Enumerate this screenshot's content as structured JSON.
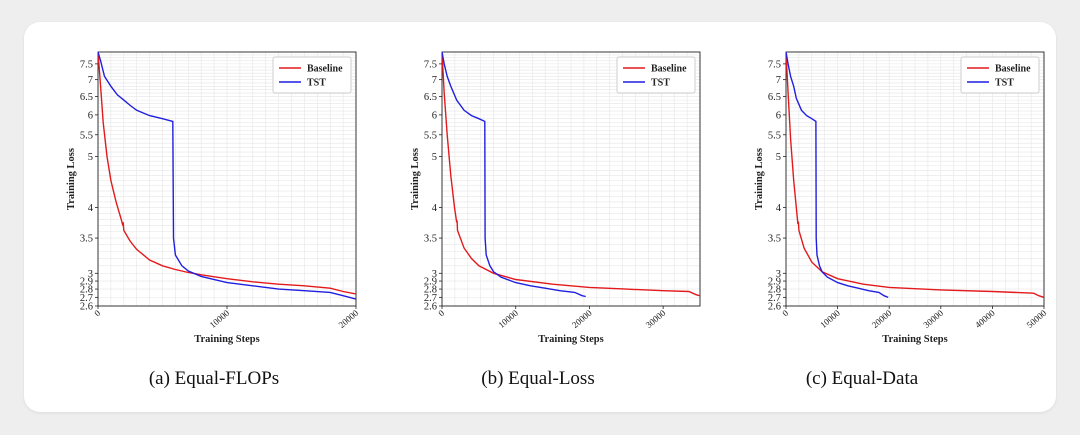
{
  "chart_data": [
    {
      "type": "line",
      "caption": "(a) Equal-FLOPs",
      "xlabel": "Training Steps",
      "ylabel": "Training Loss",
      "xlim": [
        0,
        20000
      ],
      "ylim": [
        2.6,
        7.9
      ],
      "yscale": "log",
      "xticks": [
        0,
        10000,
        20000
      ],
      "yticks": [
        2.6,
        2.7,
        2.8,
        2.9,
        3.0,
        3.5,
        4.0,
        5.0,
        5.5,
        6.0,
        6.5,
        7.0,
        7.5
      ],
      "grid": true,
      "legend": "top-right",
      "series": [
        {
          "name": "Baseline",
          "color": "#e31a1c",
          "points": [
            [
              0,
              7.9
            ],
            [
              200,
              6.8
            ],
            [
              400,
              5.8
            ],
            [
              700,
              5.0
            ],
            [
              1000,
              4.5
            ],
            [
              1400,
              4.1
            ],
            [
              1800,
              3.8
            ],
            [
              1900,
              3.72
            ],
            [
              1950,
              3.75
            ],
            [
              2000,
              3.62
            ],
            [
              2500,
              3.45
            ],
            [
              3000,
              3.33
            ],
            [
              4000,
              3.18
            ],
            [
              5000,
              3.1
            ],
            [
              6000,
              3.05
            ],
            [
              7000,
              3.01
            ],
            [
              8000,
              2.98
            ],
            [
              10000,
              2.93
            ],
            [
              12000,
              2.89
            ],
            [
              14000,
              2.86
            ],
            [
              16000,
              2.84
            ],
            [
              18000,
              2.81
            ],
            [
              19000,
              2.77
            ],
            [
              20000,
              2.74
            ]
          ]
        },
        {
          "name": "TST",
          "color": "#1f1fe0",
          "points": [
            [
              0,
              7.9
            ],
            [
              200,
              7.6
            ],
            [
              500,
              7.1
            ],
            [
              1000,
              6.8
            ],
            [
              1500,
              6.55
            ],
            [
              2000,
              6.4
            ],
            [
              2500,
              6.25
            ],
            [
              3000,
              6.12
            ],
            [
              4000,
              5.98
            ],
            [
              5000,
              5.9
            ],
            [
              5800,
              5.83
            ],
            [
              5850,
              3.5
            ],
            [
              6000,
              3.25
            ],
            [
              6500,
              3.1
            ],
            [
              7000,
              3.03
            ],
            [
              8000,
              2.96
            ],
            [
              10000,
              2.88
            ],
            [
              12000,
              2.84
            ],
            [
              14000,
              2.8
            ],
            [
              16000,
              2.78
            ],
            [
              18000,
              2.76
            ],
            [
              19000,
              2.72
            ],
            [
              20000,
              2.68
            ]
          ]
        }
      ]
    },
    {
      "type": "line",
      "caption": "(b) Equal-Loss",
      "xlabel": "Training Steps",
      "ylabel": "Training Loss",
      "xlim": [
        0,
        35000
      ],
      "ylim": [
        2.6,
        7.9
      ],
      "yscale": "log",
      "xticks": [
        0,
        10000,
        20000,
        30000
      ],
      "yticks": [
        2.6,
        2.7,
        2.8,
        2.9,
        3.0,
        3.5,
        4.0,
        5.0,
        5.5,
        6.0,
        6.5,
        7.0,
        7.5
      ],
      "grid": true,
      "legend": "top-right",
      "series": [
        {
          "name": "Baseline",
          "color": "#e31a1c",
          "points": [
            [
              0,
              7.9
            ],
            [
              300,
              6.6
            ],
            [
              700,
              5.5
            ],
            [
              1200,
              4.6
            ],
            [
              1700,
              4.0
            ],
            [
              2000,
              3.75
            ],
            [
              2050,
              3.78
            ],
            [
              2100,
              3.62
            ],
            [
              3000,
              3.35
            ],
            [
              4000,
              3.2
            ],
            [
              5000,
              3.1
            ],
            [
              7000,
              3.0
            ],
            [
              10000,
              2.92
            ],
            [
              15000,
              2.86
            ],
            [
              20000,
              2.82
            ],
            [
              25000,
              2.8
            ],
            [
              30000,
              2.78
            ],
            [
              33500,
              2.77
            ],
            [
              34500,
              2.73
            ],
            [
              35000,
              2.72
            ]
          ]
        },
        {
          "name": "TST",
          "color": "#1f1fe0",
          "points": [
            [
              0,
              7.9
            ],
            [
              300,
              7.5
            ],
            [
              700,
              7.1
            ],
            [
              1200,
              6.8
            ],
            [
              2000,
              6.4
            ],
            [
              3000,
              6.12
            ],
            [
              4000,
              5.98
            ],
            [
              5000,
              5.9
            ],
            [
              5800,
              5.83
            ],
            [
              5850,
              3.5
            ],
            [
              6000,
              3.25
            ],
            [
              6500,
              3.1
            ],
            [
              7000,
              3.02
            ],
            [
              8000,
              2.95
            ],
            [
              10000,
              2.88
            ],
            [
              12000,
              2.84
            ],
            [
              14000,
              2.81
            ],
            [
              16000,
              2.78
            ],
            [
              18000,
              2.76
            ],
            [
              19000,
              2.72
            ],
            [
              19500,
              2.71
            ]
          ]
        }
      ]
    },
    {
      "type": "line",
      "caption": "(c) Equal-Data",
      "xlabel": "Training Steps",
      "ylabel": "Training Loss",
      "xlim": [
        0,
        50000
      ],
      "ylim": [
        2.6,
        7.9
      ],
      "yscale": "log",
      "xticks": [
        0,
        10000,
        20000,
        30000,
        40000,
        50000
      ],
      "yticks": [
        2.6,
        2.7,
        2.8,
        2.9,
        3.0,
        3.5,
        4.0,
        5.0,
        5.5,
        6.0,
        6.5,
        7.0,
        7.5
      ],
      "grid": true,
      "legend": "top-right",
      "series": [
        {
          "name": "Baseline",
          "color": "#e31a1c",
          "points": [
            [
              0,
              7.9
            ],
            [
              400,
              6.6
            ],
            [
              900,
              5.4
            ],
            [
              1500,
              4.5
            ],
            [
              2000,
              4.0
            ],
            [
              2300,
              3.72
            ],
            [
              2400,
              3.76
            ],
            [
              2500,
              3.62
            ],
            [
              3500,
              3.35
            ],
            [
              5000,
              3.15
            ],
            [
              7000,
              3.02
            ],
            [
              10000,
              2.93
            ],
            [
              15000,
              2.86
            ],
            [
              20000,
              2.82
            ],
            [
              30000,
              2.79
            ],
            [
              40000,
              2.77
            ],
            [
              48000,
              2.75
            ],
            [
              49000,
              2.72
            ],
            [
              50000,
              2.7
            ]
          ]
        },
        {
          "name": "TST",
          "color": "#1f1fe0",
          "points": [
            [
              0,
              7.9
            ],
            [
              400,
              7.5
            ],
            [
              900,
              7.1
            ],
            [
              1500,
              6.8
            ],
            [
              2000,
              6.45
            ],
            [
              3000,
              6.12
            ],
            [
              4000,
              5.98
            ],
            [
              5000,
              5.9
            ],
            [
              5800,
              5.83
            ],
            [
              5850,
              3.5
            ],
            [
              6000,
              3.25
            ],
            [
              6500,
              3.1
            ],
            [
              7000,
              3.02
            ],
            [
              8000,
              2.95
            ],
            [
              10000,
              2.88
            ],
            [
              12000,
              2.84
            ],
            [
              14000,
              2.81
            ],
            [
              16000,
              2.78
            ],
            [
              18000,
              2.76
            ],
            [
              19000,
              2.72
            ],
            [
              19800,
              2.7
            ]
          ]
        }
      ]
    }
  ]
}
